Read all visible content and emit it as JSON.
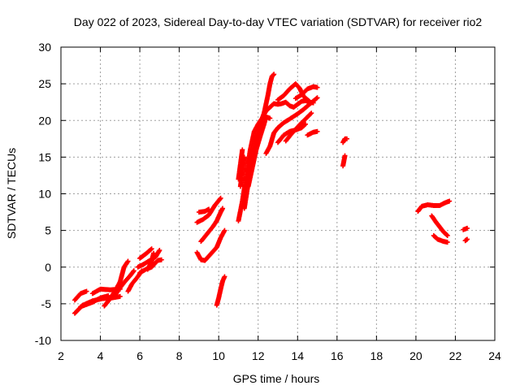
{
  "chart_data": {
    "type": "scatter",
    "title": "Day 022 of 2023, Sidereal Day-to-day VTEC variation (SDTVAR) for receiver rio2",
    "xlabel": "GPS time / hours",
    "ylabel": "SDTVAR / TECUs",
    "xlim": [
      2,
      24
    ],
    "ylim": [
      -10,
      30
    ],
    "xticks": [
      2,
      4,
      6,
      8,
      10,
      12,
      14,
      16,
      18,
      20,
      22,
      24
    ],
    "yticks": [
      -10,
      -5,
      0,
      5,
      10,
      15,
      20,
      25,
      30
    ],
    "grid": true,
    "marker": "cross",
    "color": "#ff0000",
    "series": [
      {
        "tracks": [
          [
            [
              2.7,
              -6.3
            ],
            [
              3.1,
              -5.2
            ],
            [
              3.6,
              -4.6
            ],
            [
              4.1,
              -4.3
            ],
            [
              4.6,
              -4.2
            ],
            [
              5.0,
              -4.0
            ]
          ],
          [
            [
              2.7,
              -4.5
            ],
            [
              3.0,
              -3.6
            ],
            [
              3.3,
              -3.3
            ]
          ],
          [
            [
              3.0,
              -5.4
            ],
            [
              3.6,
              -4.8
            ],
            [
              4.0,
              -4.2
            ],
            [
              4.4,
              -3.9
            ]
          ],
          [
            [
              3.6,
              -3.6
            ],
            [
              4.0,
              -3.0
            ],
            [
              4.5,
              -3.1
            ],
            [
              5.0,
              -3.0
            ]
          ],
          [
            [
              4.2,
              -5.3
            ],
            [
              4.5,
              -4.3
            ],
            [
              4.8,
              -3.0
            ],
            [
              5.0,
              -2.0
            ],
            [
              5.2,
              0.0
            ],
            [
              5.4,
              0.8
            ]
          ],
          [
            [
              4.7,
              -4.0
            ],
            [
              5.0,
              -2.8
            ],
            [
              5.3,
              -1.8
            ],
            [
              5.5,
              -1.2
            ],
            [
              5.7,
              -0.5
            ]
          ],
          [
            [
              5.4,
              -3.3
            ],
            [
              5.6,
              -2.3
            ],
            [
              5.9,
              -1.3
            ],
            [
              6.1,
              -0.5
            ]
          ],
          [
            [
              5.9,
              0.0
            ],
            [
              6.2,
              0.4
            ],
            [
              6.5,
              0.9
            ],
            [
              6.8,
              1.4
            ],
            [
              7.0,
              2.3
            ]
          ],
          [
            [
              6.0,
              -0.8
            ],
            [
              6.3,
              -0.3
            ],
            [
              6.6,
              0.0
            ],
            [
              6.9,
              0.9
            ],
            [
              7.1,
              1.0
            ]
          ],
          [
            [
              6.0,
              1.2
            ],
            [
              6.3,
              1.8
            ],
            [
              6.6,
              2.5
            ]
          ],
          [
            [
              6.4,
              -0.3
            ],
            [
              6.6,
              0.8
            ],
            [
              6.7,
              1.9
            ]
          ],
          [
            [
              8.9,
              2.0
            ],
            [
              9.1,
              1.0
            ],
            [
              9.3,
              0.9
            ],
            [
              9.6,
              1.8
            ],
            [
              9.9,
              2.7
            ],
            [
              10.1,
              4.0
            ],
            [
              10.3,
              5.0
            ]
          ],
          [
            [
              9.1,
              3.5
            ],
            [
              9.4,
              4.5
            ],
            [
              9.7,
              5.5
            ],
            [
              9.9,
              6.3
            ],
            [
              10.1,
              7.5
            ],
            [
              10.2,
              8.0
            ]
          ],
          [
            [
              8.9,
              6.1
            ],
            [
              9.2,
              6.5
            ],
            [
              9.5,
              7.1
            ],
            [
              9.8,
              8.4
            ],
            [
              10.1,
              9.4
            ]
          ],
          [
            [
              9.0,
              7.5
            ],
            [
              9.3,
              7.6
            ],
            [
              9.5,
              7.9
            ]
          ],
          [
            [
              9.9,
              -5.2
            ],
            [
              10.0,
              -4.2
            ],
            [
              10.1,
              -3.0
            ],
            [
              10.2,
              -1.9
            ],
            [
              10.3,
              -1.3
            ]
          ],
          [
            [
              11.0,
              6.3
            ],
            [
              11.2,
              9.0
            ],
            [
              11.4,
              12.5
            ],
            [
              11.6,
              16.0
            ],
            [
              11.8,
              18.5
            ],
            [
              12.0,
              19.5
            ],
            [
              12.2,
              20.3
            ],
            [
              12.4,
              21.3
            ],
            [
              12.6,
              21.8
            ],
            [
              12.8,
              22.3
            ],
            [
              13.0,
              22.2
            ],
            [
              13.2,
              22.3
            ],
            [
              13.4,
              22.5
            ],
            [
              13.6,
              22.0
            ],
            [
              13.8,
              21.8
            ],
            [
              14.0,
              22.2
            ],
            [
              14.2,
              22.6
            ],
            [
              14.4,
              22.7
            ],
            [
              14.6,
              22.5
            ],
            [
              14.8,
              22.4
            ]
          ],
          [
            [
              11.3,
              8.0
            ],
            [
              11.5,
              11.5
            ],
            [
              11.7,
              14.8
            ],
            [
              11.9,
              17.5
            ],
            [
              12.1,
              19.5
            ],
            [
              12.3,
              21.0
            ],
            [
              12.5,
              23.5
            ],
            [
              12.6,
              25.0
            ],
            [
              12.7,
              26.0
            ],
            [
              12.8,
              26.3
            ]
          ],
          [
            [
              11.5,
              11.0
            ],
            [
              11.7,
              13.5
            ],
            [
              11.9,
              16.0
            ],
            [
              12.1,
              17.8
            ],
            [
              12.3,
              19.5
            ],
            [
              12.4,
              20.5
            ],
            [
              12.6,
              20.3
            ]
          ],
          [
            [
              11.0,
              12.0
            ],
            [
              11.1,
              14.0
            ],
            [
              11.2,
              16.0
            ]
          ],
          [
            [
              11.1,
              11.0
            ],
            [
              11.2,
              13.0
            ],
            [
              11.3,
              15.0
            ]
          ],
          [
            [
              12.4,
              15.5
            ],
            [
              12.6,
              16.5
            ],
            [
              12.8,
              18.3
            ],
            [
              13.0,
              19.0
            ],
            [
              13.3,
              19.7
            ],
            [
              13.6,
              20.2
            ],
            [
              14.0,
              20.9
            ],
            [
              14.3,
              21.5
            ],
            [
              14.6,
              22.2
            ],
            [
              15.0,
              23.1
            ]
          ],
          [
            [
              13.0,
              17.0
            ],
            [
              13.3,
              18.0
            ],
            [
              13.6,
              18.5
            ],
            [
              13.9,
              18.7
            ],
            [
              14.2,
              19.0
            ],
            [
              14.4,
              19.5
            ]
          ],
          [
            [
              13.4,
              17.2
            ],
            [
              13.7,
              18.2
            ],
            [
              14.1,
              19.4
            ],
            [
              14.4,
              20.2
            ],
            [
              14.7,
              21.0
            ]
          ],
          [
            [
              13.0,
              22.8
            ],
            [
              13.3,
              23.4
            ],
            [
              13.6,
              24.3
            ],
            [
              13.9,
              25.0
            ],
            [
              14.1,
              24.4
            ],
            [
              14.3,
              23.3
            ],
            [
              14.6,
              22.6
            ]
          ],
          [
            [
              13.9,
              23.0
            ],
            [
              14.2,
              23.5
            ],
            [
              14.5,
              24.3
            ],
            [
              14.8,
              24.6
            ],
            [
              15.0,
              24.5
            ]
          ],
          [
            [
              14.5,
              18.0
            ],
            [
              14.8,
              18.4
            ],
            [
              15.0,
              18.5
            ]
          ],
          [
            [
              16.3,
              17.0
            ],
            [
              16.4,
              17.5
            ],
            [
              16.5,
              17.5
            ]
          ],
          [
            [
              16.3,
              13.8
            ],
            [
              16.35,
              14.5
            ],
            [
              16.4,
              15.2
            ]
          ],
          [
            [
              20.1,
              7.6
            ],
            [
              20.3,
              8.3
            ],
            [
              20.6,
              8.5
            ],
            [
              20.9,
              8.4
            ],
            [
              21.2,
              8.4
            ],
            [
              21.5,
              8.8
            ],
            [
              21.7,
              9.0
            ]
          ],
          [
            [
              20.8,
              7.0
            ],
            [
              21.0,
              6.2
            ],
            [
              21.2,
              5.5
            ],
            [
              21.4,
              4.8
            ],
            [
              21.6,
              4.3
            ]
          ],
          [
            [
              20.9,
              4.3
            ],
            [
              21.1,
              3.8
            ],
            [
              21.4,
              3.5
            ],
            [
              21.6,
              3.4
            ]
          ],
          [
            [
              22.4,
              5.1
            ],
            [
              22.6,
              5.3
            ]
          ],
          [
            [
              22.5,
              3.6
            ],
            [
              22.6,
              3.8
            ]
          ]
        ]
      }
    ]
  }
}
